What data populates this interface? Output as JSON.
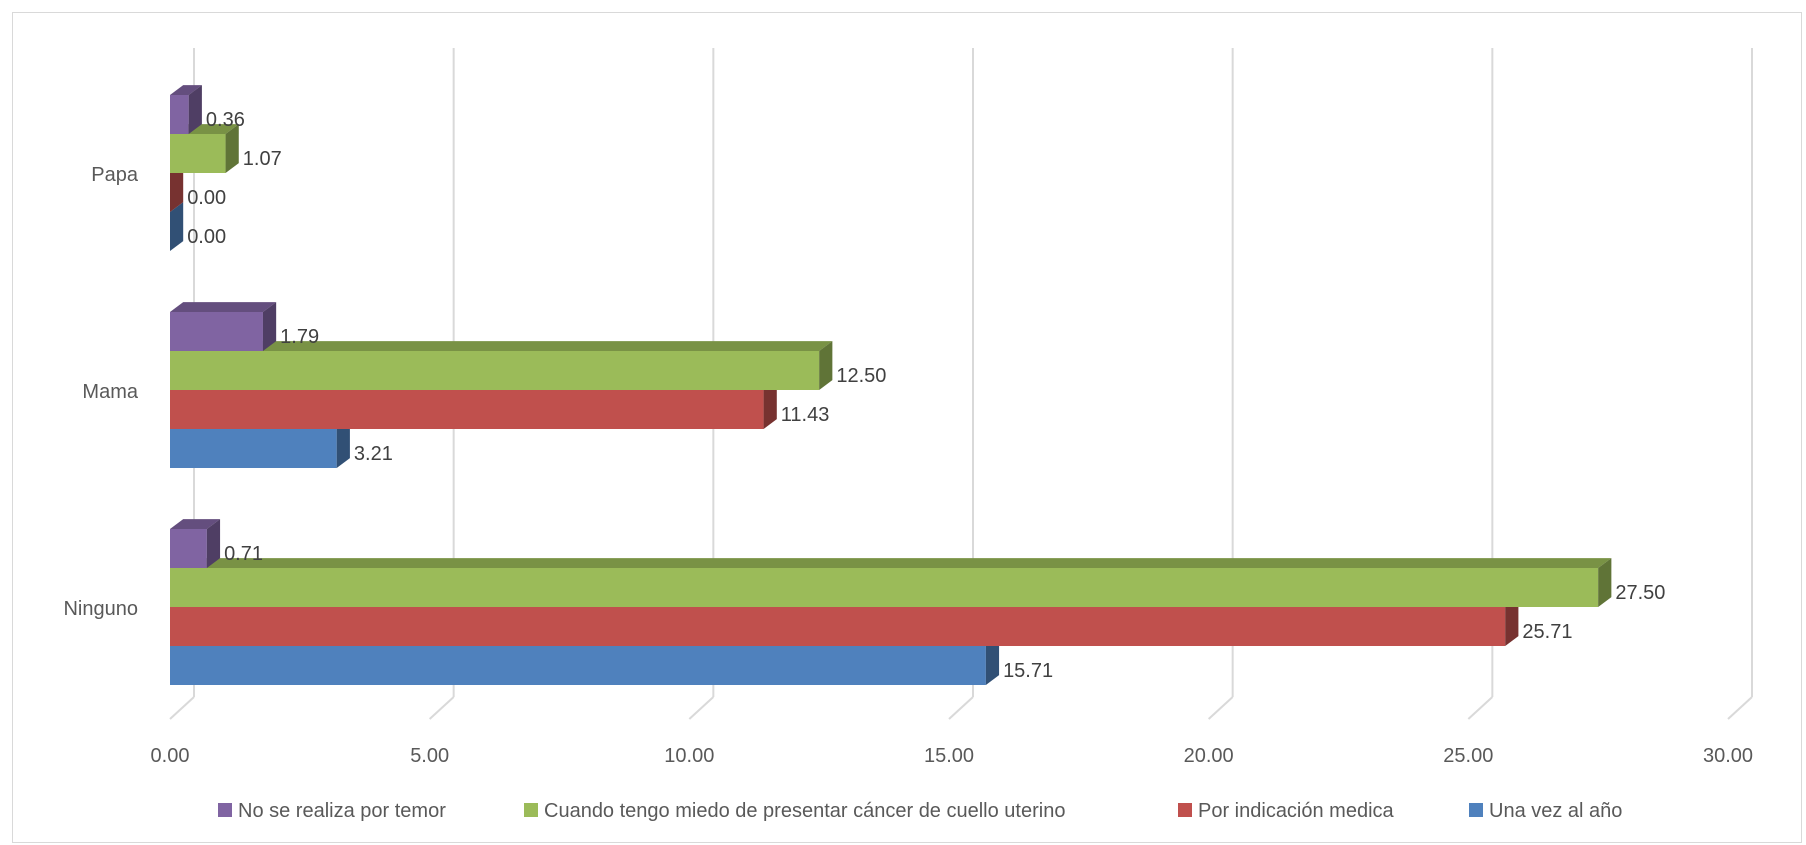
{
  "chart_data": {
    "type": "bar",
    "orientation": "horizontal",
    "style": "3d-clustered",
    "categories": [
      "Ninguno",
      "Mama",
      "Papa"
    ],
    "series": [
      {
        "name": "Una vez al año",
        "color": "#4F81BD",
        "values": [
          15.71,
          3.21,
          0.0
        ]
      },
      {
        "name": "Por indicación medica",
        "color": "#C0504D",
        "values": [
          25.71,
          11.43,
          0.0
        ]
      },
      {
        "name": "Cuando tengo miedo de presentar cáncer de cuello uterino",
        "color": "#9BBB59",
        "values": [
          27.5,
          12.5,
          1.07
        ]
      },
      {
        "name": "No se realiza por temor",
        "color": "#8064A2",
        "values": [
          0.71,
          1.79,
          0.36
        ]
      }
    ],
    "x_ticks": [
      "0.00",
      "5.00",
      "10.00",
      "15.00",
      "20.00",
      "25.00",
      "30.00"
    ],
    "xlim": [
      0,
      30
    ],
    "grid": true,
    "legend_position": "bottom",
    "data_label_format": "2 decimals",
    "title": "",
    "xlabel": "",
    "ylabel": ""
  }
}
